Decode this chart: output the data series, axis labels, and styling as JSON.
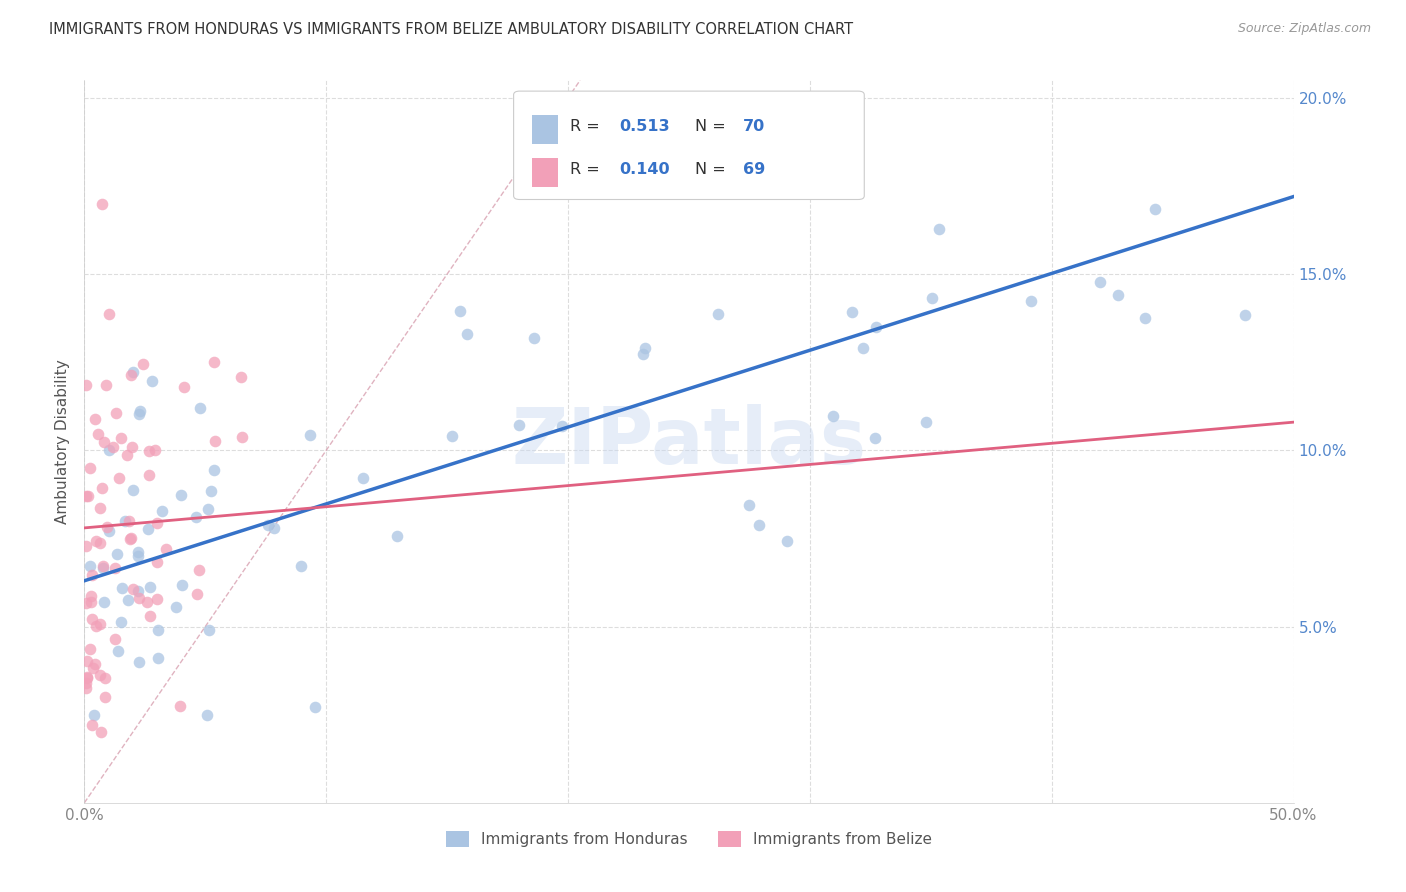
{
  "title": "IMMIGRANTS FROM HONDURAS VS IMMIGRANTS FROM BELIZE AMBULATORY DISABILITY CORRELATION CHART",
  "source": "Source: ZipAtlas.com",
  "ylabel": "Ambulatory Disability",
  "x_min": 0.0,
  "x_max": 0.5,
  "y_min": 0.0,
  "y_max": 0.205,
  "x_ticks": [
    0.0,
    0.1,
    0.2,
    0.3,
    0.4,
    0.5
  ],
  "x_tick_labels": [
    "0.0%",
    "",
    "",
    "",
    "",
    "50.0%"
  ],
  "y_ticks": [
    0.05,
    0.1,
    0.15,
    0.2
  ],
  "y_tick_labels": [
    "5.0%",
    "10.0%",
    "15.0%",
    "20.0%"
  ],
  "watermark": "ZIPatlas",
  "color_honduras": "#aac4e2",
  "color_belize": "#f2a0b8",
  "color_line_honduras": "#3672c8",
  "color_line_belize": "#e06080",
  "color_diagonal": "#d8a0b0",
  "background_color": "#ffffff",
  "grid_color": "#dddddd",
  "title_color": "#333333",
  "source_color": "#999999",
  "ytick_color": "#5588cc",
  "xtick_color": "#888888",
  "ylabel_color": "#555555",
  "legend_r1": "0.513",
  "legend_n1": "70",
  "legend_r2": "0.140",
  "legend_n2": "69",
  "hon_line_start_x": 0.0,
  "hon_line_start_y": 0.063,
  "hon_line_end_x": 0.5,
  "hon_line_end_y": 0.172,
  "bel_line_start_x": 0.0,
  "bel_line_start_y": 0.078,
  "bel_line_end_x": 0.5,
  "bel_line_end_y": 0.108
}
